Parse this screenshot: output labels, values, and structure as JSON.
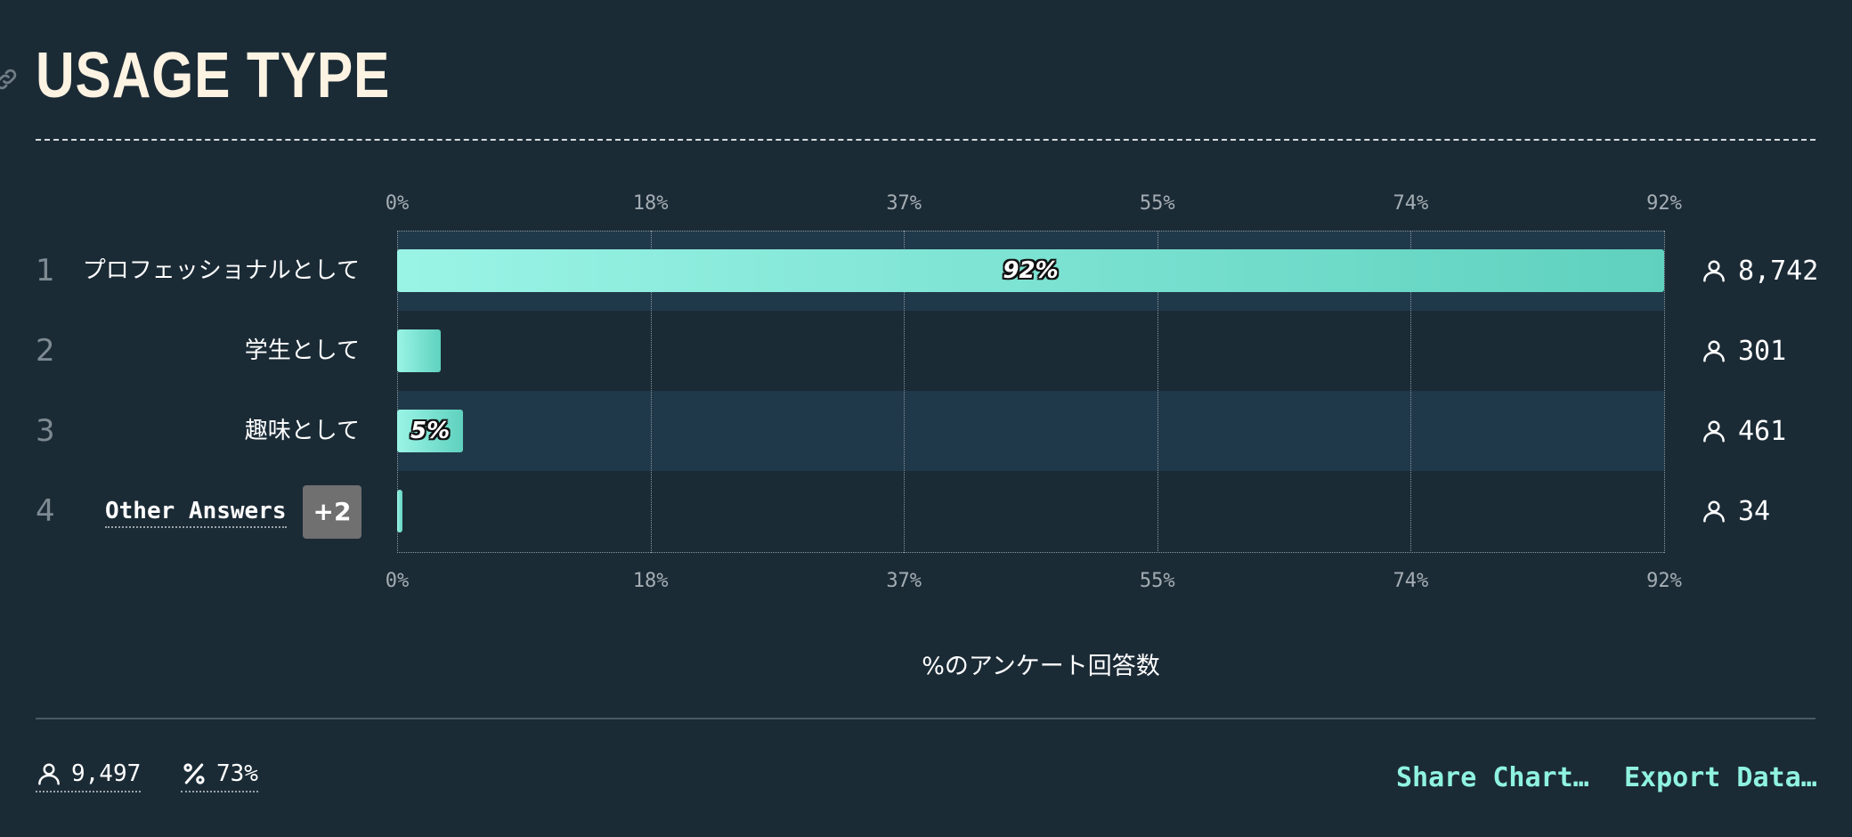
{
  "header": {
    "title": "USAGE TYPE"
  },
  "icons": {
    "anchor": "link-icon",
    "respondents": "user-icon",
    "percent": "percent-icon"
  },
  "colors": {
    "background": "#1b2b36",
    "bar_start": "#9af4e6",
    "bar_end": "#5fd1be",
    "accent": "#8ff3df",
    "title": "#fdf3e2"
  },
  "chart_data": {
    "type": "bar",
    "orientation": "horizontal",
    "categories": [
      "プロフェッショナルとして",
      "学生として",
      "趣味として",
      "Other Answers"
    ],
    "ranks": [
      "1",
      "2",
      "3",
      "4"
    ],
    "values": [
      92,
      3.2,
      4.8,
      0.4
    ],
    "value_labels": [
      "92%",
      "",
      "5%",
      ""
    ],
    "counts": [
      "8,742",
      "301",
      "461",
      "34"
    ],
    "xlabel": "%のアンケート回答数",
    "xlim": [
      0,
      92
    ],
    "ticks": [
      "0%",
      "18%",
      "37%",
      "55%",
      "74%",
      "92%"
    ],
    "tick_values": [
      0,
      18.4,
      36.8,
      55.2,
      73.6,
      92
    ],
    "other_badge": "+2",
    "grid": true
  },
  "footer": {
    "total_respondents": "9,497",
    "completion_rate": "73%",
    "share_label": "Share Chart…",
    "export_label": "Export Data…"
  }
}
